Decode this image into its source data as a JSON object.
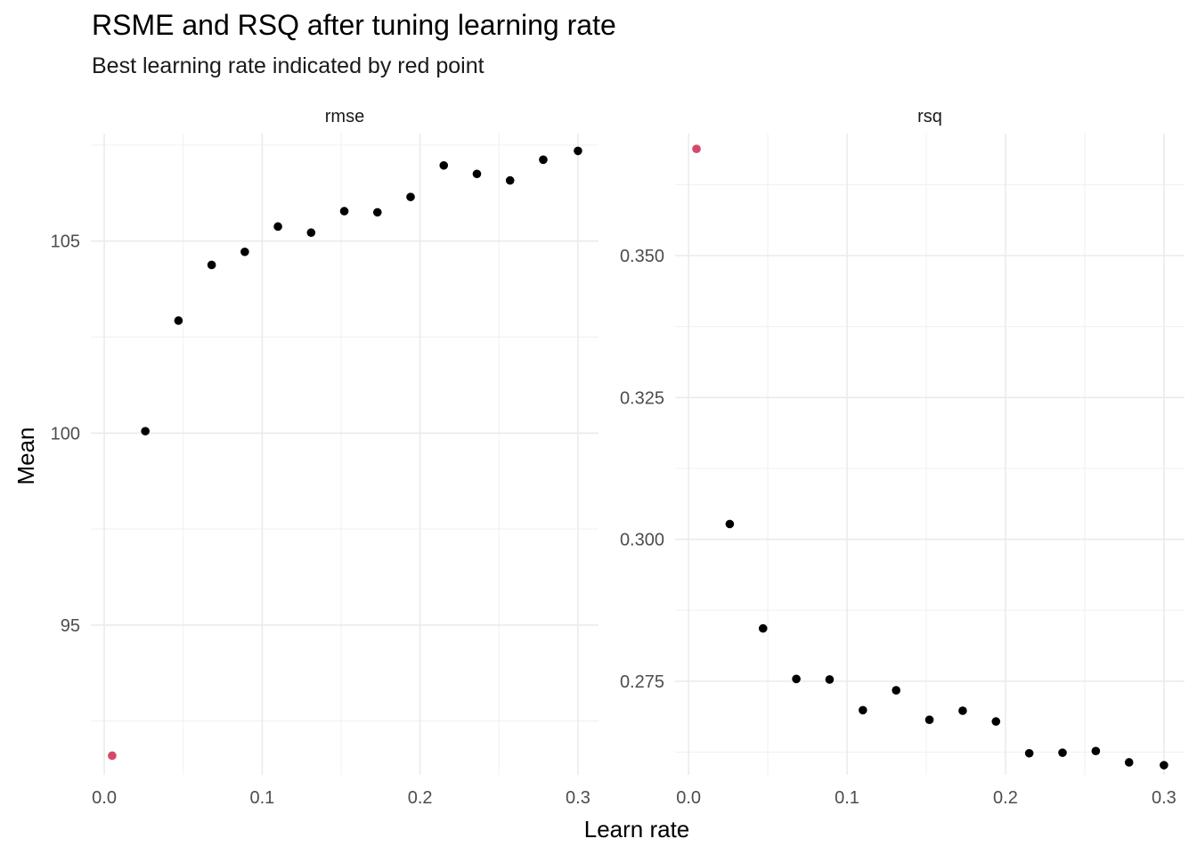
{
  "title": "RSME and RSQ after tuning learning rate",
  "subtitle": "Best learning rate indicated by red point",
  "xlabel": "Learn rate",
  "ylabel": "Mean",
  "colors": {
    "point": "#000000",
    "best_point": "#d6486b",
    "grid_major": "#ebebeb",
    "grid_minor": "#f2f2f2"
  },
  "chart_data": [
    {
      "type": "scatter",
      "facet": "rmse",
      "xticks": [
        "0.0",
        "0.1",
        "0.2",
        "0.3"
      ],
      "xtick_values": [
        0,
        0.1,
        0.2,
        0.3
      ],
      "yticks": [
        "95",
        "100",
        "105"
      ],
      "ytick_values": [
        95,
        100,
        105
      ],
      "xlim": [
        -0.0085,
        0.313
      ],
      "ylim": [
        91.1,
        107.8
      ],
      "grid": true,
      "x": [
        0.005,
        0.026,
        0.047,
        0.068,
        0.089,
        0.11,
        0.131,
        0.152,
        0.173,
        0.194,
        0.215,
        0.236,
        0.257,
        0.278,
        0.3
      ],
      "y": [
        91.6,
        100.05,
        102.93,
        104.38,
        104.72,
        105.38,
        105.22,
        105.78,
        105.75,
        106.15,
        106.97,
        106.75,
        106.58,
        107.12,
        107.35
      ],
      "best_index": 0
    },
    {
      "type": "scatter",
      "facet": "rsq",
      "xticks": [
        "0.0",
        "0.1",
        "0.2",
        "0.3"
      ],
      "xtick_values": [
        0,
        0.1,
        0.2,
        0.3
      ],
      "yticks": [
        "0.275",
        "0.300",
        "0.325",
        "0.350"
      ],
      "ytick_values": [
        0.275,
        0.3,
        0.325,
        0.35
      ],
      "xlim": [
        -0.0085,
        0.313
      ],
      "ylim": [
        0.2585,
        0.3715
      ],
      "grid": true,
      "x": [
        0.005,
        0.026,
        0.047,
        0.068,
        0.089,
        0.11,
        0.131,
        0.152,
        0.173,
        0.194,
        0.215,
        0.236,
        0.257,
        0.278,
        0.3
      ],
      "y": [
        0.3688,
        0.3027,
        0.2843,
        0.2754,
        0.2753,
        0.2699,
        0.2734,
        0.2682,
        0.2698,
        0.2679,
        0.2623,
        0.2624,
        0.2627,
        0.2607,
        0.2602
      ],
      "best_index": 0
    }
  ]
}
